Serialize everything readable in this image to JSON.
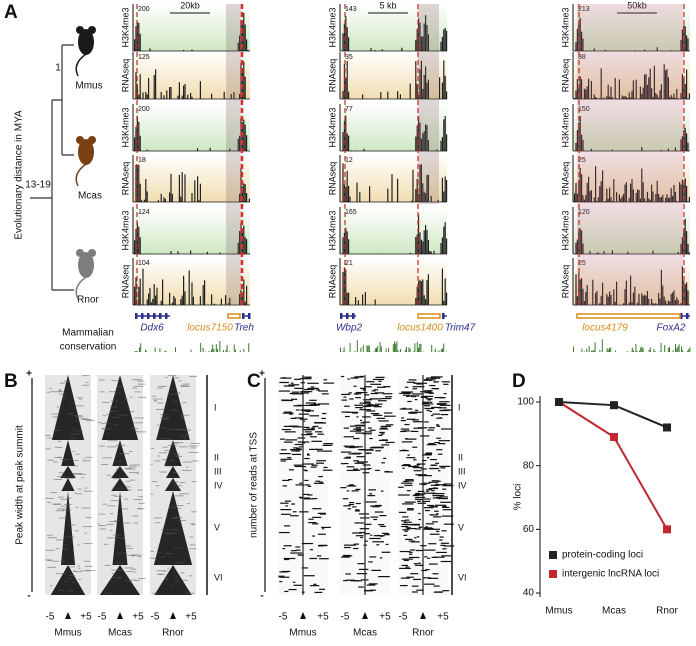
{
  "panel_labels": [
    "A",
    "B",
    "C",
    "D"
  ],
  "panel_a": {
    "y_axis_label": "Evolutionary distance in MYA",
    "divergence": [
      "1",
      "13-19"
    ],
    "species": [
      "Mmus",
      "Mcas",
      "Rnor"
    ],
    "track_labels": [
      "H3K4me3",
      "RNAseq"
    ],
    "conservation_label": [
      "Mammalian",
      "conservation"
    ],
    "loci": [
      {
        "scale": "20kb",
        "track_max": [
          200,
          125,
          200,
          18,
          124,
          104
        ],
        "genes": [
          "Ddx6",
          "locus7150",
          "Treh"
        ]
      },
      {
        "scale": "5 kb",
        "track_max": [
          143,
          35,
          77,
          12,
          165,
          21
        ],
        "genes": [
          "Wbp2",
          "locus1400",
          "Trim47"
        ]
      },
      {
        "scale": "50kb",
        "track_max": [
          213,
          38,
          150,
          25,
          120,
          25
        ],
        "genes": [
          "locus4179",
          "FoxA2"
        ]
      }
    ]
  },
  "panel_b": {
    "y_label": "Peak width at peak summit",
    "axis_ends": [
      "+",
      "-"
    ],
    "x_ticks": [
      "-5",
      "+5"
    ],
    "species": [
      "Mmus",
      "Mcas",
      "Rnor"
    ],
    "clusters": [
      "I",
      "II",
      "III",
      "IV",
      "V",
      "VI"
    ]
  },
  "panel_c": {
    "y_label": "number of reads at TSS",
    "axis_ends": [
      "+",
      "-"
    ],
    "x_ticks": [
      "-5",
      "+5"
    ],
    "species": [
      "Mmus",
      "Mcas",
      "Rnor"
    ],
    "clusters": [
      "I",
      "II",
      "III",
      "IV",
      "V",
      "VI"
    ]
  },
  "chart_data": {
    "type": "line",
    "y_label": "% loci",
    "categories": [
      "Mmus",
      "Mcas",
      "Rnor"
    ],
    "series": [
      {
        "name": "intergenic lncRNA loci",
        "color": "#c1272d",
        "values": [
          100,
          89,
          60
        ]
      },
      {
        "name": "protein-coding loci",
        "color": "#222222",
        "values": [
          100,
          99,
          92
        ]
      }
    ],
    "ylim": [
      40,
      100
    ],
    "yticks": [
      40,
      60,
      80,
      100
    ]
  }
}
